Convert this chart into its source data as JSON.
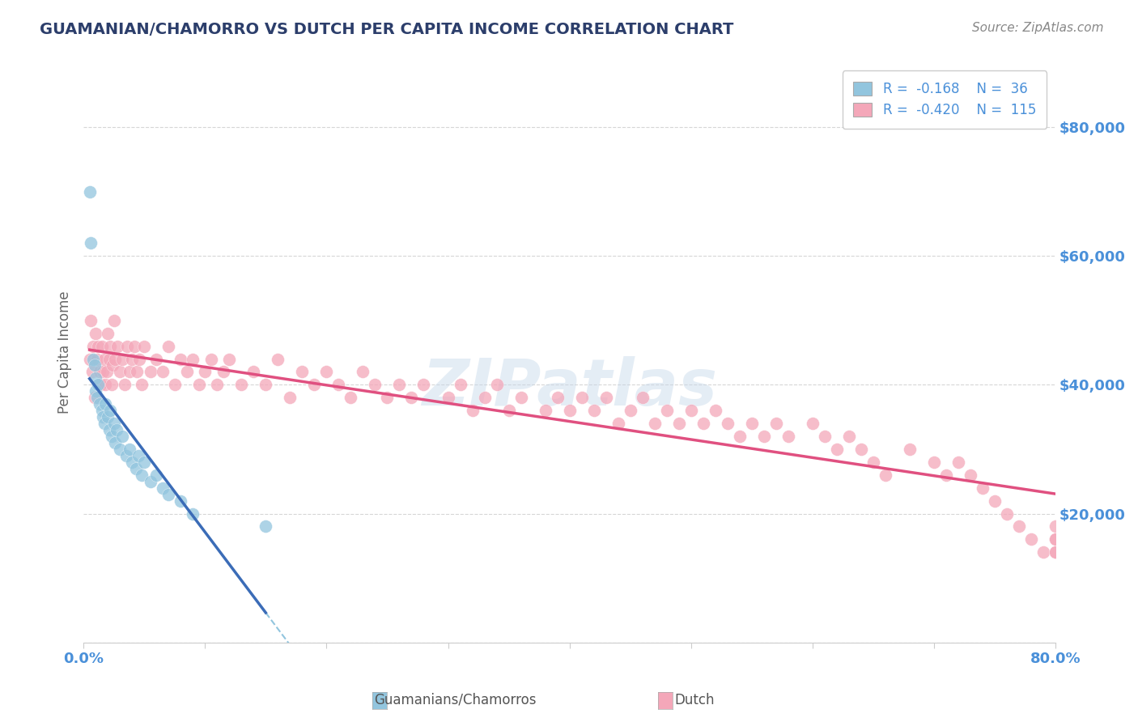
{
  "title": "GUAMANIAN/CHAMORRO VS DUTCH PER CAPITA INCOME CORRELATION CHART",
  "source_text": "Source: ZipAtlas.com",
  "ylabel": "Per Capita Income",
  "xlim": [
    0.0,
    0.8
  ],
  "ylim": [
    0,
    90000
  ],
  "yticks": [
    0,
    20000,
    40000,
    60000,
    80000
  ],
  "ytick_labels": [
    "",
    "$20,000",
    "$40,000",
    "$60,000",
    "$80,000"
  ],
  "watermark": "ZIPatlas",
  "blue_color": "#92c5de",
  "pink_color": "#f4a7b9",
  "blue_line_color": "#3b6cb7",
  "pink_line_color": "#e05080",
  "dashed_line_color": "#92c5de",
  "title_color": "#2c3e6b",
  "axis_label_color": "#4a90d9",
  "source_color": "#888888",
  "background_color": "#ffffff",
  "grid_color": "#cccccc",
  "guam_x": [
    0.005,
    0.006,
    0.008,
    0.009,
    0.01,
    0.01,
    0.011,
    0.012,
    0.013,
    0.015,
    0.016,
    0.017,
    0.018,
    0.02,
    0.021,
    0.022,
    0.023,
    0.025,
    0.026,
    0.027,
    0.03,
    0.032,
    0.035,
    0.038,
    0.04,
    0.043,
    0.045,
    0.048,
    0.05,
    0.055,
    0.06,
    0.065,
    0.07,
    0.08,
    0.09,
    0.15
  ],
  "guam_y": [
    70000,
    62000,
    44000,
    43000,
    41000,
    39000,
    38000,
    40000,
    37000,
    36000,
    35000,
    34000,
    37000,
    35000,
    33000,
    36000,
    32000,
    34000,
    31000,
    33000,
    30000,
    32000,
    29000,
    30000,
    28000,
    27000,
    29000,
    26000,
    28000,
    25000,
    26000,
    24000,
    23000,
    22000,
    20000,
    18000
  ],
  "dutch_x": [
    0.005,
    0.006,
    0.007,
    0.008,
    0.009,
    0.01,
    0.011,
    0.012,
    0.013,
    0.014,
    0.015,
    0.016,
    0.017,
    0.018,
    0.019,
    0.02,
    0.021,
    0.022,
    0.023,
    0.024,
    0.025,
    0.026,
    0.028,
    0.03,
    0.032,
    0.034,
    0.036,
    0.038,
    0.04,
    0.042,
    0.044,
    0.046,
    0.048,
    0.05,
    0.055,
    0.06,
    0.065,
    0.07,
    0.075,
    0.08,
    0.085,
    0.09,
    0.095,
    0.1,
    0.105,
    0.11,
    0.115,
    0.12,
    0.13,
    0.14,
    0.15,
    0.16,
    0.17,
    0.18,
    0.19,
    0.2,
    0.21,
    0.22,
    0.23,
    0.24,
    0.25,
    0.26,
    0.27,
    0.28,
    0.3,
    0.31,
    0.32,
    0.33,
    0.34,
    0.35,
    0.36,
    0.38,
    0.39,
    0.4,
    0.41,
    0.42,
    0.43,
    0.44,
    0.45,
    0.46,
    0.47,
    0.48,
    0.49,
    0.5,
    0.51,
    0.52,
    0.53,
    0.54,
    0.55,
    0.56,
    0.57,
    0.58,
    0.6,
    0.61,
    0.62,
    0.63,
    0.64,
    0.65,
    0.66,
    0.68,
    0.7,
    0.71,
    0.72,
    0.73,
    0.74,
    0.75,
    0.76,
    0.77,
    0.78,
    0.79,
    0.8,
    0.8,
    0.8,
    0.8,
    0.8
  ],
  "dutch_y": [
    44000,
    50000,
    42000,
    46000,
    38000,
    48000,
    44000,
    46000,
    42000,
    40000,
    46000,
    42000,
    44000,
    40000,
    42000,
    48000,
    44000,
    46000,
    40000,
    43000,
    50000,
    44000,
    46000,
    42000,
    44000,
    40000,
    46000,
    42000,
    44000,
    46000,
    42000,
    44000,
    40000,
    46000,
    42000,
    44000,
    42000,
    46000,
    40000,
    44000,
    42000,
    44000,
    40000,
    42000,
    44000,
    40000,
    42000,
    44000,
    40000,
    42000,
    40000,
    44000,
    38000,
    42000,
    40000,
    42000,
    40000,
    38000,
    42000,
    40000,
    38000,
    40000,
    38000,
    40000,
    38000,
    40000,
    36000,
    38000,
    40000,
    36000,
    38000,
    36000,
    38000,
    36000,
    38000,
    36000,
    38000,
    34000,
    36000,
    38000,
    34000,
    36000,
    34000,
    36000,
    34000,
    36000,
    34000,
    32000,
    34000,
    32000,
    34000,
    32000,
    34000,
    32000,
    30000,
    32000,
    30000,
    28000,
    26000,
    30000,
    28000,
    26000,
    28000,
    26000,
    24000,
    22000,
    20000,
    18000,
    16000,
    14000,
    18000,
    16000,
    14000,
    16000,
    14000
  ]
}
